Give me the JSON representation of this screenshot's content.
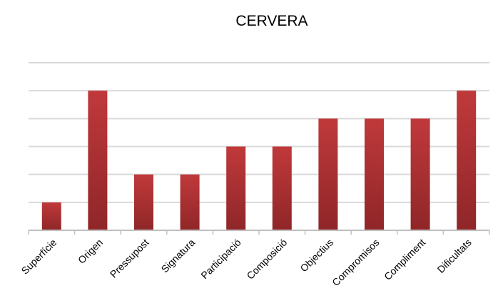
{
  "chart_data": {
    "type": "bar",
    "title": "CERVERA",
    "xlabel": "",
    "ylabel": "",
    "categories": [
      "Superfície",
      "Origen",
      "Pressupost",
      "Signatura",
      "Participació",
      "Composició",
      "Objectius",
      "Compromisos",
      "Compliment",
      "Dificultats"
    ],
    "values": [
      1,
      5,
      2,
      2,
      3,
      3,
      4,
      4,
      4,
      5
    ],
    "ylim": [
      0,
      6
    ],
    "grid": true,
    "legend": "none",
    "colors": {
      "bar": "#c0393b",
      "bar_dark": "#8f2628",
      "grid": "#d9d9d9",
      "axis": "#bfbfbf"
    }
  }
}
